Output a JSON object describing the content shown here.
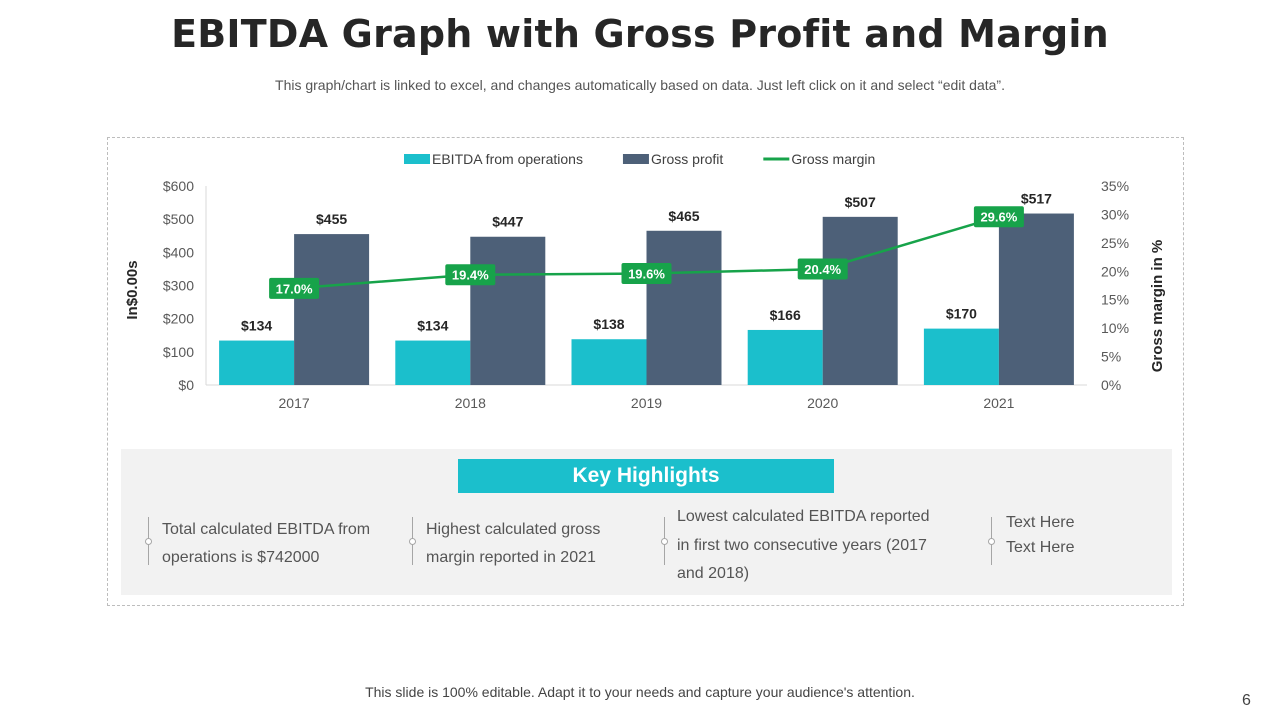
{
  "title": "EBITDA Graph with Gross Profit and Margin",
  "subtitle": "This graph/chart is linked to excel, and changes automatically based on data. Just left click on it and select “edit data”.",
  "chart_data": {
    "type": "bar",
    "categories": [
      "2017",
      "2018",
      "2019",
      "2020",
      "2021"
    ],
    "series": [
      {
        "name": "EBITDA from operations",
        "type": "bar",
        "axis": "left",
        "color": "#1bbfcc",
        "values": [
          134,
          134,
          138,
          166,
          170
        ],
        "labels": [
          "$134",
          "$134",
          "$138",
          "$166",
          "$170"
        ]
      },
      {
        "name": "Gross profit",
        "type": "bar",
        "axis": "left",
        "color": "#4d6078",
        "values": [
          455,
          447,
          465,
          507,
          517
        ],
        "labels": [
          "$455",
          "$447",
          "$465",
          "$507",
          "$517"
        ]
      },
      {
        "name": "Gross margin",
        "type": "line",
        "axis": "right",
        "color": "#17a34a",
        "values": [
          17.0,
          19.4,
          19.6,
          20.4,
          29.6
        ],
        "labels": [
          "17.0%",
          "19.4%",
          "19.6%",
          "20.4%",
          "29.6%"
        ]
      }
    ],
    "ylabel": "In$0.00s",
    "y2label": "Gross margin in %",
    "ylim": [
      0,
      600
    ],
    "y2lim": [
      0,
      35
    ],
    "yticks": [
      "$0",
      "$100",
      "$200",
      "$300",
      "$400",
      "$500",
      "$600"
    ],
    "y2ticks": [
      "0%",
      "5%",
      "10%",
      "15%",
      "20%",
      "25%",
      "30%",
      "35%"
    ],
    "legend_position": "top",
    "grid": false
  },
  "highlights": {
    "title": "Key Highlights",
    "items": [
      {
        "lines": [
          "Total calculated EBITDA from",
          "operations is $742000"
        ]
      },
      {
        "lines": [
          "Highest calculated gross",
          "margin reported in 2021"
        ]
      },
      {
        "lines": [
          "Lowest calculated EBITDA reported",
          "in first two consecutive years (2017",
          "and 2018)"
        ]
      },
      {
        "lines": [
          "Text Here",
          "Text Here"
        ]
      }
    ]
  },
  "footer": "This slide is 100% editable. Adapt it to your needs and capture your audience's attention.",
  "page_number": "6"
}
